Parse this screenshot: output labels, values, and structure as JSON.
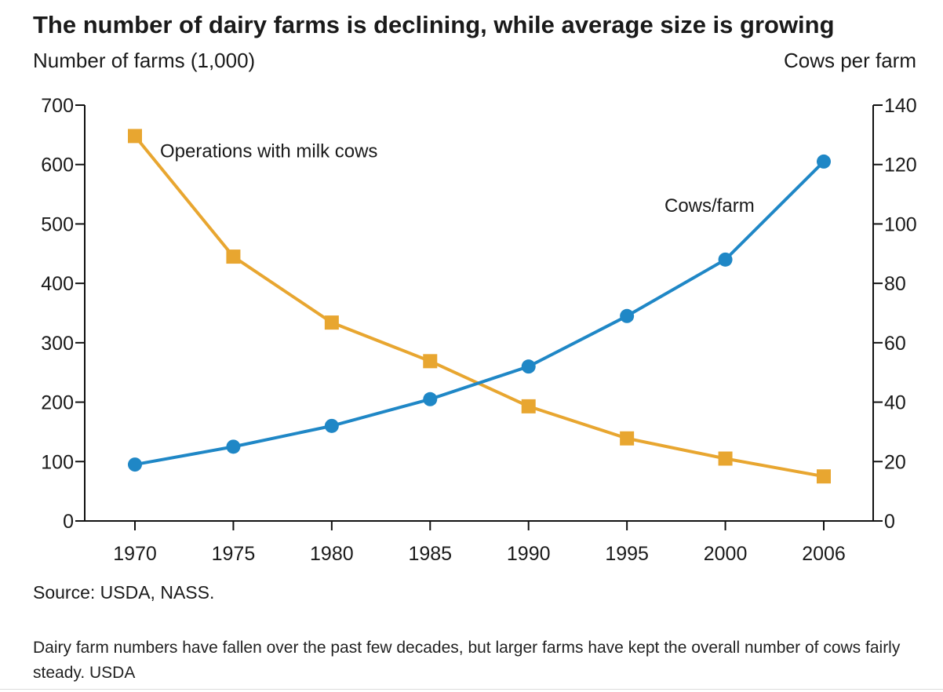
{
  "chart_data": {
    "type": "line",
    "title": "The number of dairy farms is declining, while average size is growing",
    "ylabel_left": "Number of farms (1,000)",
    "ylabel_right": "Cows per farm",
    "x": [
      "1970",
      "1975",
      "1980",
      "1985",
      "1990",
      "1995",
      "2000",
      "2006"
    ],
    "ylim_left": [
      0,
      700
    ],
    "yticks_left": [
      0,
      100,
      200,
      300,
      400,
      500,
      600,
      700
    ],
    "ylim_right": [
      0,
      140
    ],
    "yticks_right": [
      0,
      20,
      40,
      60,
      80,
      100,
      120,
      140
    ],
    "grid": false,
    "series": [
      {
        "name": "Operations with milk cows",
        "axis": "left",
        "marker": "square",
        "color": "#E8A630",
        "values": [
          648,
          445,
          334,
          269,
          193,
          139,
          105,
          75
        ]
      },
      {
        "name": "Cows/farm",
        "axis": "right",
        "marker": "circle",
        "color": "#1F87C6",
        "values": [
          19,
          25,
          32,
          41,
          52,
          69,
          88,
          121
        ]
      }
    ]
  },
  "source": "Source: USDA, NASS.",
  "caption": "Dairy farm numbers have fallen over the past few decades, but larger farms have kept the overall number of cows fairly steady. USDA"
}
